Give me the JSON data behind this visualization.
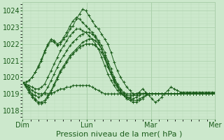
{
  "background_color": "#cce8cc",
  "plot_bg_color": "#cce8cc",
  "grid_color_major": "#aacfaa",
  "grid_color_minor": "#bbdebb",
  "line_color": "#1a5c1a",
  "ylim": [
    1017.5,
    1024.5
  ],
  "yticks": [
    1018,
    1019,
    1020,
    1021,
    1022,
    1023,
    1024
  ],
  "xlabel": "Pression niveau de la mer( hPa )",
  "xlabel_fontsize": 8,
  "tick_fontsize": 7,
  "xtick_labels": [
    "Dim",
    "Lun",
    "Mar",
    "Mer"
  ],
  "xtick_positions": [
    0,
    48,
    96,
    144
  ],
  "x_total": 144,
  "series": [
    [
      1019.7,
      1019.7,
      1019.8,
      1020.0,
      1020.3,
      1020.6,
      1021.0,
      1021.5,
      1021.9,
      1022.2,
      1022.1,
      1021.9,
      1022.0,
      1022.3,
      1022.5,
      1022.9,
      1023.1,
      1023.5,
      1023.8,
      1024.1,
      1024.0,
      1023.7,
      1023.4,
      1023.1,
      1022.9,
      1022.6,
      1022.3,
      1022.0,
      1021.5,
      1020.9,
      1020.4,
      1020.0,
      1019.7,
      1019.4,
      1019.2,
      1019.0,
      1019.0,
      1019.1,
      1019.3,
      1019.1,
      1018.9,
      1018.7,
      1018.5,
      1018.6,
      1018.8,
      1019.0,
      1019.2,
      1019.4,
      1019.3,
      1019.2,
      1019.1,
      1019.1,
      1019.1,
      1019.1,
      1019.1,
      1019.1,
      1019.1,
      1019.1,
      1019.1,
      1019.1,
      1019.1,
      1019.1
    ],
    [
      1019.7,
      1019.7,
      1019.8,
      1020.0,
      1020.3,
      1020.7,
      1021.1,
      1021.6,
      1022.0,
      1022.3,
      1022.2,
      1022.0,
      1022.1,
      1022.4,
      1022.7,
      1023.1,
      1023.4,
      1023.6,
      1023.5,
      1023.3,
      1023.1,
      1022.9,
      1022.7,
      1022.5,
      1022.2,
      1021.9,
      1021.5,
      1021.0,
      1020.5,
      1020.0,
      1019.6,
      1019.3,
      1019.1,
      1018.9,
      1018.9,
      1018.9,
      1018.9,
      1019.0,
      1019.0,
      1019.0,
      1019.0,
      1019.0,
      1019.0,
      1019.0,
      1019.0,
      1019.0,
      1019.0,
      1019.0,
      1019.0,
      1019.0,
      1019.0,
      1019.0,
      1019.0,
      1019.0,
      1019.0,
      1019.0,
      1019.0,
      1019.0,
      1019.0,
      1019.0,
      1019.0,
      1019.0
    ],
    [
      1019.7,
      1019.6,
      1019.5,
      1019.4,
      1019.3,
      1019.3,
      1019.4,
      1019.6,
      1020.0,
      1020.4,
      1020.8,
      1021.2,
      1021.6,
      1021.9,
      1022.2,
      1022.5,
      1022.7,
      1022.9,
      1022.9,
      1022.8,
      1022.7,
      1022.5,
      1022.3,
      1022.0,
      1021.7,
      1021.2,
      1020.7,
      1020.2,
      1019.8,
      1019.5,
      1019.2,
      1019.0,
      1018.9,
      1018.8,
      1018.8,
      1018.9,
      1019.0,
      1019.0,
      1019.0,
      1019.0,
      1019.0,
      1019.0,
      1019.0,
      1019.0,
      1019.0,
      1019.0,
      1019.0,
      1019.0,
      1019.0,
      1019.0,
      1019.0,
      1019.0,
      1019.0,
      1019.0,
      1019.0,
      1019.0,
      1019.0,
      1019.0,
      1019.0,
      1019.0,
      1019.0,
      1019.0
    ],
    [
      1019.7,
      1019.5,
      1019.3,
      1019.0,
      1018.9,
      1018.8,
      1018.9,
      1019.1,
      1019.4,
      1019.8,
      1020.2,
      1020.6,
      1021.0,
      1021.3,
      1021.6,
      1021.9,
      1022.1,
      1022.3,
      1022.5,
      1022.6,
      1022.7,
      1022.7,
      1022.6,
      1022.4,
      1022.1,
      1021.7,
      1021.2,
      1020.7,
      1020.2,
      1019.8,
      1019.4,
      1019.1,
      1018.9,
      1018.7,
      1018.7,
      1018.7,
      1018.8,
      1018.9,
      1019.0,
      1019.0,
      1019.0,
      1019.0,
      1019.0,
      1019.0,
      1019.0,
      1019.0,
      1019.0,
      1019.0,
      1019.0,
      1019.0,
      1019.0,
      1019.0,
      1019.0,
      1019.0,
      1019.0,
      1019.0,
      1019.0,
      1019.0,
      1019.0,
      1019.0,
      1019.0,
      1019.0
    ],
    [
      1019.7,
      1019.5,
      1019.2,
      1018.9,
      1018.7,
      1018.5,
      1018.5,
      1018.6,
      1018.9,
      1019.2,
      1019.6,
      1020.0,
      1020.4,
      1020.7,
      1021.0,
      1021.3,
      1021.5,
      1021.7,
      1021.9,
      1022.1,
      1022.2,
      1022.3,
      1022.3,
      1022.2,
      1022.0,
      1021.7,
      1021.3,
      1020.8,
      1020.3,
      1019.9,
      1019.5,
      1019.2,
      1019.0,
      1018.8,
      1018.7,
      1018.6,
      1018.6,
      1018.7,
      1018.8,
      1018.9,
      1019.0,
      1019.0,
      1019.0,
      1019.0,
      1019.0,
      1019.0,
      1019.0,
      1019.0,
      1019.0,
      1019.0,
      1019.0,
      1019.0,
      1019.0,
      1019.0,
      1019.0,
      1019.0,
      1019.0,
      1019.0,
      1019.0,
      1019.0,
      1019.0,
      1019.0
    ],
    [
      1019.7,
      1019.4,
      1019.1,
      1018.8,
      1018.6,
      1018.4,
      1018.4,
      1018.5,
      1018.8,
      1019.1,
      1019.5,
      1019.9,
      1020.3,
      1020.6,
      1020.9,
      1021.2,
      1021.4,
      1021.6,
      1021.8,
      1021.9,
      1022.0,
      1022.0,
      1022.0,
      1021.9,
      1021.7,
      1021.5,
      1021.1,
      1020.6,
      1020.2,
      1019.7,
      1019.4,
      1019.1,
      1018.9,
      1018.7,
      1018.6,
      1018.5,
      1018.5,
      1018.6,
      1018.7,
      1018.9,
      1019.0,
      1019.0,
      1019.0,
      1019.0,
      1019.0,
      1019.0,
      1019.0,
      1019.0,
      1019.0,
      1019.0,
      1019.0,
      1019.0,
      1019.0,
      1019.0,
      1019.0,
      1019.0,
      1019.0,
      1019.0,
      1019.0,
      1019.0,
      1019.0,
      1019.0
    ],
    [
      1019.7,
      1019.5,
      1019.4,
      1019.2,
      1019.1,
      1019.0,
      1019.0,
      1019.0,
      1019.0,
      1019.0,
      1019.1,
      1019.2,
      1019.3,
      1019.3,
      1019.4,
      1019.4,
      1019.5,
      1019.5,
      1019.5,
      1019.5,
      1019.5,
      1019.5,
      1019.4,
      1019.3,
      1019.2,
      1019.1,
      1019.0,
      1019.0,
      1019.0,
      1019.0,
      1019.0,
      1019.0,
      1019.0,
      1019.0,
      1019.0,
      1019.0,
      1019.0,
      1019.0,
      1019.0,
      1019.0,
      1019.0,
      1019.0,
      1019.0,
      1019.0,
      1019.0,
      1019.0,
      1019.0,
      1019.0,
      1019.0,
      1019.0,
      1019.0,
      1019.0,
      1019.0,
      1019.0,
      1019.0,
      1019.0,
      1019.0,
      1019.0,
      1019.0,
      1019.0,
      1019.0,
      1019.0
    ]
  ]
}
